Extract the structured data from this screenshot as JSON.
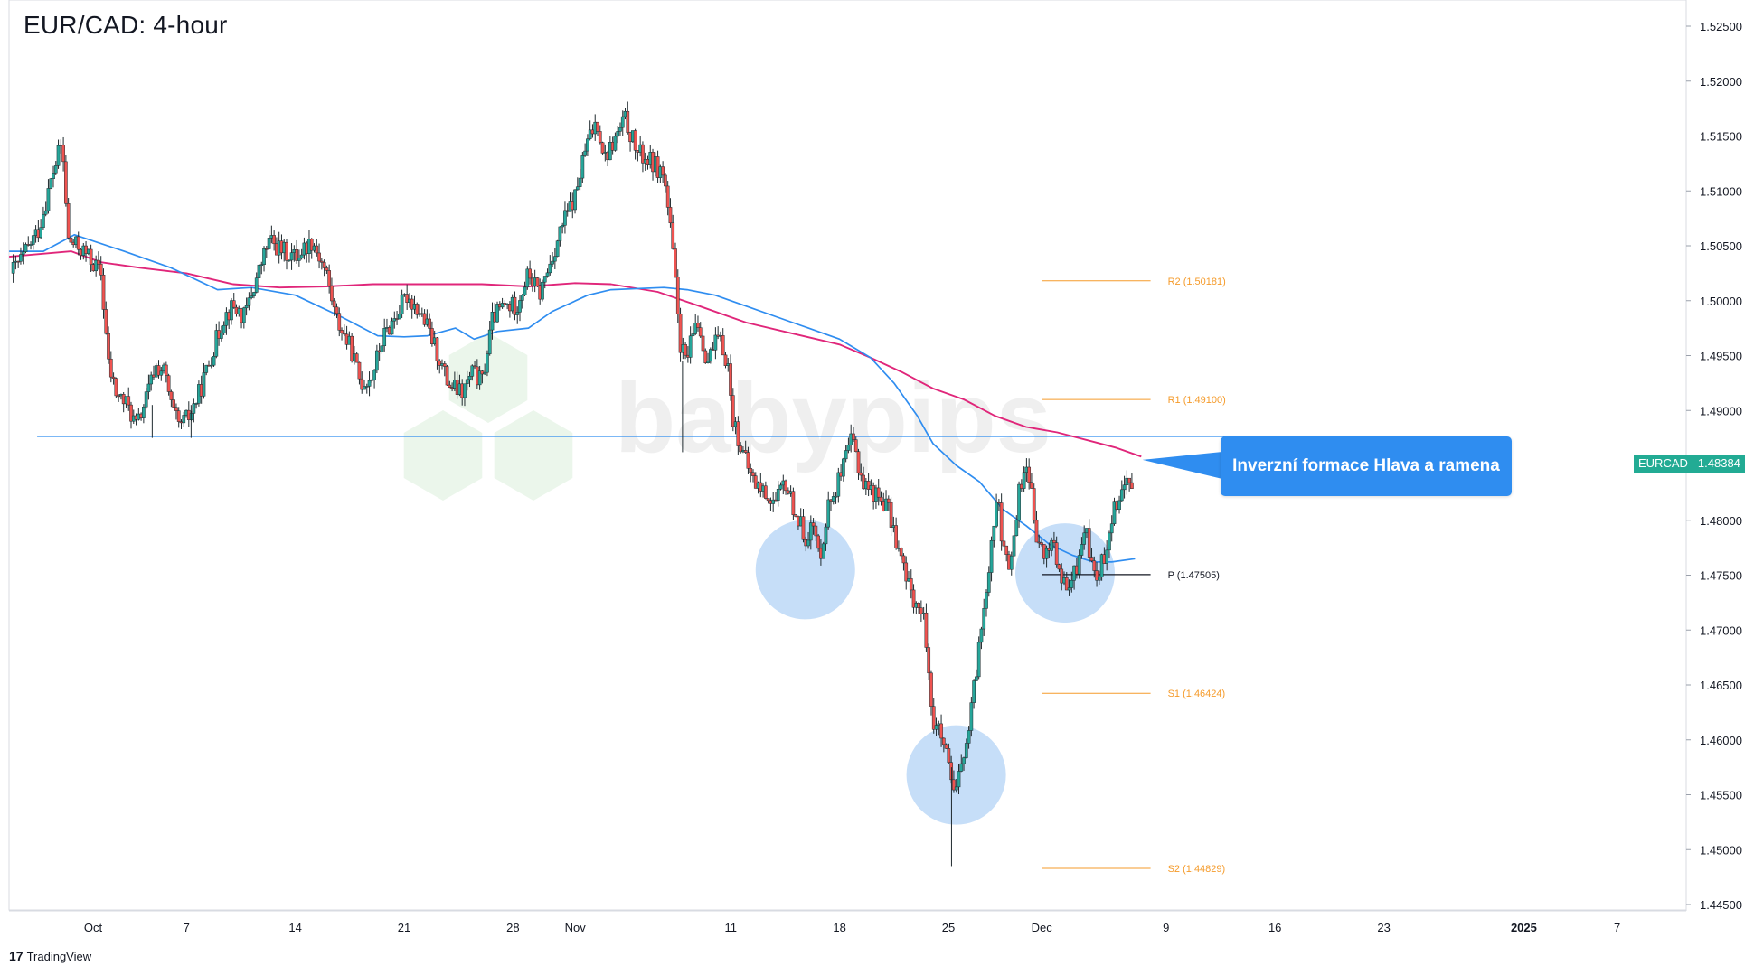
{
  "header": {
    "title": "EUR/CAD: 4-hour"
  },
  "footer": {
    "brand": "TradingView"
  },
  "watermark": "babypips",
  "annotation": {
    "text": "Inverzní formace Hlava a ramena"
  },
  "price_badge": {
    "symbol": "EURCAD",
    "value": "1.48384"
  },
  "colors": {
    "up": "#26a69a",
    "down": "#ef5350",
    "ma_fast": "#2f8df0",
    "ma_slow": "#e0267a",
    "neckline": "#2f8df0",
    "pivot": "#f59b2b",
    "pivot_p": "#131722",
    "circle": "#bcd8f7"
  },
  "chart_data": {
    "type": "candlestick",
    "title": "EUR/CAD: 4-hour",
    "y_range": [
      1.44,
      1.526
    ],
    "y_ticks": [
      "1.52500",
      "1.52000",
      "1.51500",
      "1.51000",
      "1.50500",
      "1.50000",
      "1.49500",
      "1.49000",
      "1.48500",
      "1.48000",
      "1.47500",
      "1.47000",
      "1.46500",
      "1.46000",
      "1.45500",
      "1.45000",
      "1.44500"
    ],
    "x_ticks": [
      {
        "label": "Oct",
        "day": 0
      },
      {
        "label": "7",
        "day": 6
      },
      {
        "label": "14",
        "day": 13
      },
      {
        "label": "21",
        "day": 20
      },
      {
        "label": "28",
        "day": 27
      },
      {
        "label": "Nov",
        "day": 31
      },
      {
        "label": "11",
        "day": 41
      },
      {
        "label": "18",
        "day": 48
      },
      {
        "label": "25",
        "day": 55
      },
      {
        "label": "Dec",
        "day": 61
      },
      {
        "label": "9",
        "day": 69
      },
      {
        "label": "16",
        "day": 76
      },
      {
        "label": "23",
        "day": 83
      },
      {
        "label": "2025",
        "day": 92
      },
      {
        "label": "7",
        "day": 98
      }
    ],
    "close_path": [
      [
        -5.3,
        1.5025
      ],
      [
        -4.5,
        1.504
      ],
      [
        -3.5,
        1.5065
      ],
      [
        -2.6,
        1.5115
      ],
      [
        -2,
        1.5145
      ],
      [
        -1.6,
        1.5055
      ],
      [
        -0.6,
        1.5045
      ],
      [
        0.5,
        1.5025
      ],
      [
        1,
        1.494
      ],
      [
        1.5,
        1.4915
      ],
      [
        2.2,
        1.4905
      ],
      [
        2.8,
        1.4885
      ],
      [
        3.5,
        1.4915
      ],
      [
        4,
        1.494
      ],
      [
        4.6,
        1.4935
      ],
      [
        5,
        1.4905
      ],
      [
        5.5,
        1.4885
      ],
      [
        6.2,
        1.4895
      ],
      [
        6.8,
        1.4915
      ],
      [
        7.6,
        1.495
      ],
      [
        8.4,
        1.4985
      ],
      [
        9,
        1.4995
      ],
      [
        9.7,
        1.4985
      ],
      [
        10.5,
        1.502
      ],
      [
        11.3,
        1.5055
      ],
      [
        12.2,
        1.5045
      ],
      [
        13,
        1.504
      ],
      [
        14.1,
        1.5055
      ],
      [
        15,
        1.5025
      ],
      [
        15.6,
        1.4985
      ],
      [
        16.6,
        1.4955
      ],
      [
        17.2,
        1.4925
      ],
      [
        17.9,
        1.493
      ],
      [
        18.6,
        1.4965
      ],
      [
        19.4,
        1.4985
      ],
      [
        20.2,
        1.5005
      ],
      [
        21,
        1.499
      ],
      [
        21.5,
        1.4975
      ],
      [
        22.2,
        1.495
      ],
      [
        22.8,
        1.4925
      ],
      [
        23.7,
        1.4915
      ],
      [
        24.4,
        1.4935
      ],
      [
        25,
        1.4925
      ],
      [
        25.7,
        1.4985
      ],
      [
        26.4,
        1.4995
      ],
      [
        27.2,
        1.4995
      ],
      [
        28,
        1.5025
      ],
      [
        28.7,
        1.5005
      ],
      [
        29.4,
        1.5035
      ],
      [
        30.2,
        1.507
      ],
      [
        31,
        1.5095
      ],
      [
        31.7,
        1.514
      ],
      [
        32.4,
        1.5165
      ],
      [
        32.9,
        1.513
      ],
      [
        33.5,
        1.5145
      ],
      [
        34.2,
        1.5165
      ],
      [
        35,
        1.5135
      ],
      [
        35.5,
        1.513
      ],
      [
        36,
        1.5125
      ],
      [
        36.7,
        1.5115
      ],
      [
        37.2,
        1.5055
      ],
      [
        37.8,
        1.4955
      ],
      [
        38.2,
        1.4945
      ],
      [
        38.8,
        1.4985
      ],
      [
        39.5,
        1.4945
      ],
      [
        40.2,
        1.4965
      ],
      [
        40.8,
        1.4945
      ],
      [
        41.1,
        1.4895
      ],
      [
        41.9,
        1.4855
      ],
      [
        42.5,
        1.4835
      ],
      [
        43.2,
        1.4825
      ],
      [
        43.9,
        1.4815
      ],
      [
        44.5,
        1.4835
      ],
      [
        45.2,
        1.4805
      ],
      [
        45.8,
        1.4785
      ],
      [
        46.3,
        1.4795
      ],
      [
        46.7,
        1.4765
      ],
      [
        47.3,
        1.4815
      ],
      [
        48.2,
        1.4845
      ],
      [
        48.8,
        1.4875
      ],
      [
        49.5,
        1.4835
      ],
      [
        50.2,
        1.4825
      ],
      [
        51,
        1.4815
      ],
      [
        51.6,
        1.4785
      ],
      [
        52.3,
        1.4745
      ],
      [
        52.9,
        1.4725
      ],
      [
        53.5,
        1.4705
      ],
      [
        54,
        1.4615
      ],
      [
        54.5,
        1.4605
      ],
      [
        55,
        1.4575
      ],
      [
        55.4,
        1.4545
      ],
      [
        55.8,
        1.4575
      ],
      [
        56.3,
        1.4605
      ],
      [
        56.8,
        1.4665
      ],
      [
        57.3,
        1.4725
      ],
      [
        57.8,
        1.4785
      ],
      [
        58.1,
        1.4825
      ],
      [
        58.6,
        1.4765
      ],
      [
        59,
        1.4755
      ],
      [
        59.5,
        1.4825
      ],
      [
        60.1,
        1.4855
      ],
      [
        60.6,
        1.4785
      ],
      [
        61.2,
        1.4765
      ],
      [
        61.7,
        1.4785
      ],
      [
        62.2,
        1.4745
      ],
      [
        62.7,
        1.4735
      ],
      [
        63.2,
        1.4755
      ],
      [
        63.8,
        1.4795
      ],
      [
        64.4,
        1.4745
      ],
      [
        65,
        1.4765
      ],
      [
        65.5,
        1.4805
      ],
      [
        66,
        1.4825
      ],
      [
        66.5,
        1.4835
      ],
      [
        66.9,
        1.4838
      ]
    ],
    "ma_fast": [
      [
        -5.4,
        1.5045
      ],
      [
        -3.2,
        1.5045
      ],
      [
        -1.2,
        1.506
      ],
      [
        2,
        1.5045
      ],
      [
        5,
        1.503
      ],
      [
        8,
        1.501
      ],
      [
        10.2,
        1.5012
      ],
      [
        13,
        1.5005
      ],
      [
        16,
        1.4985
      ],
      [
        18.3,
        1.4968
      ],
      [
        20,
        1.4967
      ],
      [
        21.5,
        1.4968
      ],
      [
        23.3,
        1.4975
      ],
      [
        24.5,
        1.4965
      ],
      [
        26,
        1.4972
      ],
      [
        28,
        1.4975
      ],
      [
        29.5,
        1.499
      ],
      [
        31.8,
        1.5005
      ],
      [
        33.3,
        1.501
      ],
      [
        36.7,
        1.5012
      ],
      [
        38.2,
        1.501
      ],
      [
        40,
        1.5005
      ],
      [
        42,
        1.4995
      ],
      [
        44,
        1.4985
      ],
      [
        46,
        1.4975
      ],
      [
        48,
        1.4965
      ],
      [
        50,
        1.4948
      ],
      [
        51.5,
        1.4925
      ],
      [
        53,
        1.4895
      ],
      [
        54,
        1.487
      ],
      [
        55.5,
        1.485
      ],
      [
        57,
        1.4835
      ],
      [
        58.5,
        1.481
      ],
      [
        60,
        1.4795
      ],
      [
        61.5,
        1.4778
      ],
      [
        63,
        1.4768
      ],
      [
        64.3,
        1.4762
      ],
      [
        65.5,
        1.4762
      ],
      [
        67,
        1.4765
      ]
    ],
    "ma_slow": [
      [
        -5.4,
        1.504
      ],
      [
        -1.4,
        1.5045
      ],
      [
        0.5,
        1.5035
      ],
      [
        3,
        1.503
      ],
      [
        6,
        1.5025
      ],
      [
        9,
        1.5015
      ],
      [
        12,
        1.5012
      ],
      [
        15,
        1.5013
      ],
      [
        18,
        1.5015
      ],
      [
        22,
        1.5015
      ],
      [
        25,
        1.5015
      ],
      [
        28,
        1.5013
      ],
      [
        31,
        1.5016
      ],
      [
        33.3,
        1.5015
      ],
      [
        36.3,
        1.5008
      ],
      [
        39,
        1.4995
      ],
      [
        42,
        1.498
      ],
      [
        45,
        1.497
      ],
      [
        48,
        1.496
      ],
      [
        50,
        1.4948
      ],
      [
        52,
        1.4935
      ],
      [
        54,
        1.492
      ],
      [
        56,
        1.491
      ],
      [
        58,
        1.4895
      ],
      [
        60,
        1.4885
      ],
      [
        62,
        1.488
      ],
      [
        64.2,
        1.4872
      ],
      [
        65.8,
        1.4866
      ],
      [
        67.4,
        1.4858
      ]
    ],
    "neckline": {
      "price": 1.48765,
      "from_day": -3.6,
      "to_day": 83
    },
    "pivot_levels": [
      {
        "name": "R2",
        "label": "R2 (1.50181)",
        "price": 1.50181
      },
      {
        "name": "R1",
        "label": "R1 (1.49100)",
        "price": 1.491
      },
      {
        "name": "P",
        "label": "P (1.47505)",
        "price": 1.47505
      },
      {
        "name": "S1",
        "label": "S1 (1.46424)",
        "price": 1.46424
      },
      {
        "name": "S2",
        "label": "S2 (1.44829)",
        "price": 1.44829
      }
    ],
    "pivot_span_days": [
      61,
      68
    ],
    "highlights": [
      {
        "name": "left-shoulder",
        "day": 45.8,
        "price": 1.4755
      },
      {
        "name": "head",
        "day": 55.5,
        "price": 1.4568
      },
      {
        "name": "right-shoulder",
        "day": 62.5,
        "price": 1.4752
      }
    ],
    "last_price": 1.48384
  }
}
